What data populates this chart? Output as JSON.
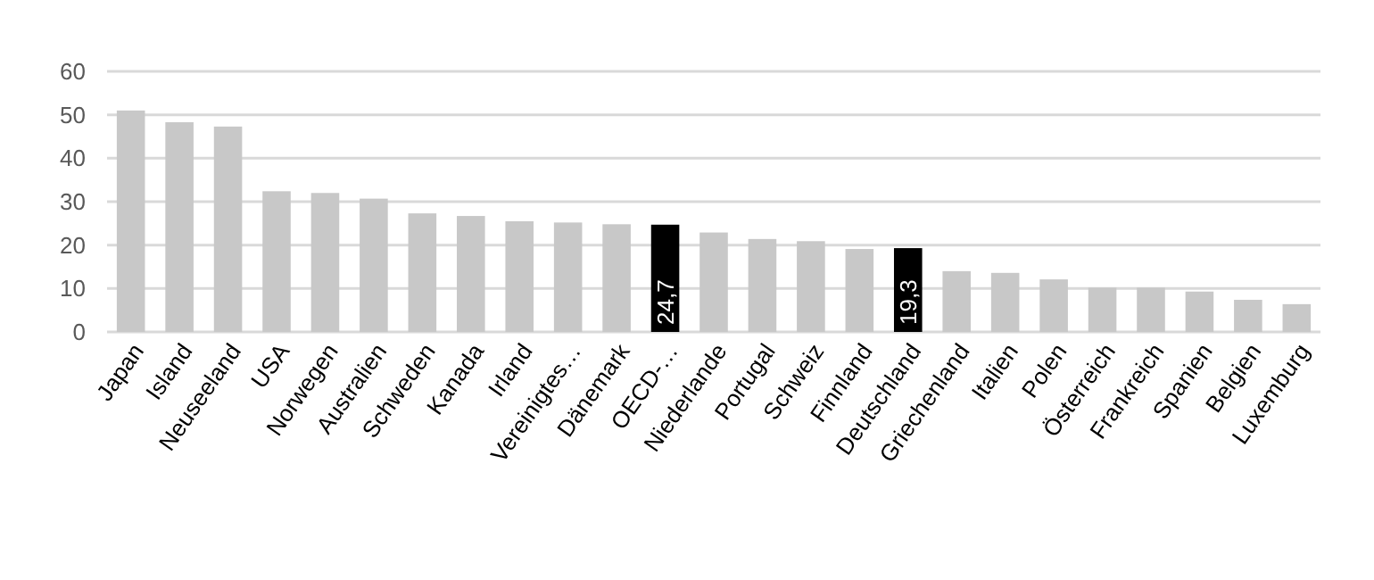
{
  "chart_data": {
    "type": "bar",
    "categories": [
      "Japan",
      "Island",
      "Neuseeland",
      "USA",
      "Norwegen",
      "Australien",
      "Schweden",
      "Kanada",
      "Irland",
      "Vereinigtes…",
      "Dänemark",
      "OECD-…",
      "Niederlande",
      "Portugal",
      "Schweiz",
      "Finnland",
      "Deutschland",
      "Griechenland",
      "Italien",
      "Polen",
      "Österreich",
      "Frankreich",
      "Spanien",
      "Belgien",
      "Luxemburg"
    ],
    "values": [
      51,
      48.3,
      47.3,
      32.4,
      32,
      30.7,
      27.3,
      26.7,
      25.5,
      25.2,
      24.8,
      24.7,
      22.9,
      21.4,
      20.9,
      19.1,
      19.3,
      14,
      13.6,
      12.1,
      10.2,
      10.2,
      9.3,
      7.4,
      6.4
    ],
    "colors": [
      "#c8c8c8",
      "#c8c8c8",
      "#c8c8c8",
      "#c8c8c8",
      "#c8c8c8",
      "#c8c8c8",
      "#c8c8c8",
      "#c8c8c8",
      "#c8c8c8",
      "#c8c8c8",
      "#c8c8c8",
      "#000000",
      "#c8c8c8",
      "#c8c8c8",
      "#c8c8c8",
      "#c8c8c8",
      "#000000",
      "#c8c8c8",
      "#c8c8c8",
      "#c8c8c8",
      "#c8c8c8",
      "#c8c8c8",
      "#c8c8c8",
      "#c8c8c8",
      "#c8c8c8"
    ],
    "value_labels": [
      null,
      null,
      null,
      null,
      null,
      null,
      null,
      null,
      null,
      null,
      null,
      "24,7",
      null,
      null,
      null,
      null,
      "19,3",
      null,
      null,
      null,
      null,
      null,
      null,
      null,
      null
    ],
    "ylim": [
      0,
      60
    ],
    "yticks": [
      0,
      10,
      20,
      30,
      40,
      50,
      60
    ],
    "grid": "y"
  }
}
